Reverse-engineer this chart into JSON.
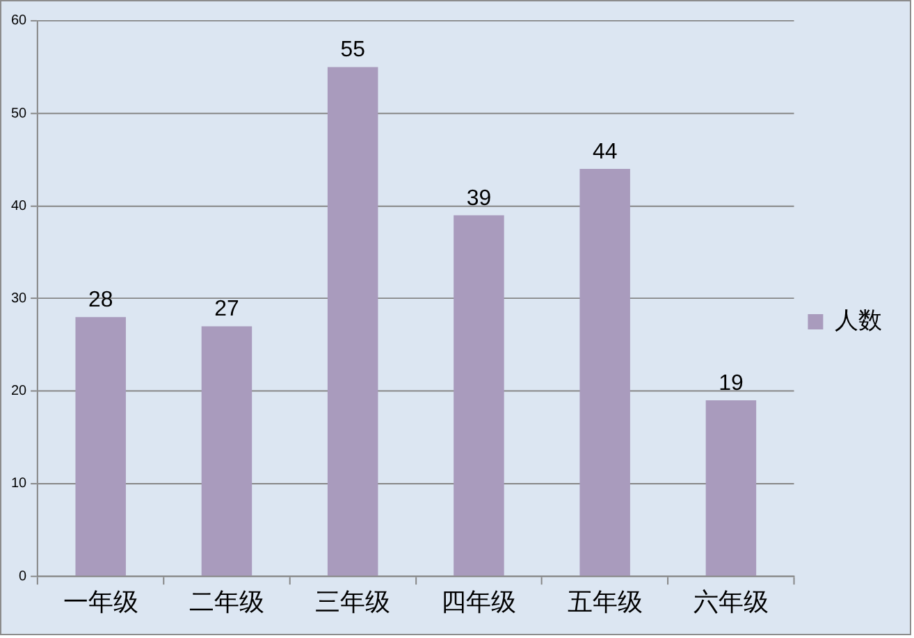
{
  "chart_data": {
    "type": "bar",
    "categories": [
      "一年级",
      "二年级",
      "三年级",
      "四年级",
      "五年级",
      "六年级"
    ],
    "series": [
      {
        "name": "人数",
        "color": "#a99bbd",
        "values": [
          28,
          27,
          55,
          39,
          44,
          19
        ]
      }
    ],
    "ylim": [
      0,
      60
    ],
    "yticks": [
      0,
      10,
      20,
      30,
      40,
      50,
      60
    ],
    "grid": "y",
    "legend": "right",
    "data_labels": true
  }
}
